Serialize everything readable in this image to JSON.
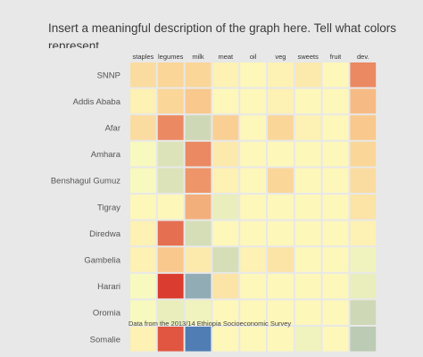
{
  "chart_data": {
    "type": "heatmap",
    "title": "Insert a meaningful description of the graph here. Tell what colors represent.",
    "source": "Data from the 2013/14 Ethiopia Socioeconomic Survey",
    "columns": [
      "staples",
      "legumes",
      "milk",
      "meat",
      "oil",
      "veg",
      "sweets",
      "fruit",
      "dev."
    ],
    "rows": [
      "SNNP",
      "Addis Ababa",
      "Afar",
      "Amhara",
      "Benshagul Gumuz",
      "Tigray",
      "Diredwa",
      "Gambelia",
      "Harari",
      "Oromia",
      "Somalie"
    ],
    "color_scale": {
      "low": "#fefec0",
      "mid_warm": "#f9c88c",
      "high": "#d73027",
      "cool_light": "#c7d3b4",
      "cool": "#4575b4"
    },
    "values": [
      [
        0.25,
        0.3,
        0.3,
        0.1,
        0.05,
        0.1,
        0.15,
        0.05,
        0.65
      ],
      [
        0.1,
        0.3,
        0.4,
        0.05,
        0.05,
        0.1,
        0.05,
        0.05,
        0.45
      ],
      [
        0.25,
        0.65,
        -0.35,
        0.35,
        0.05,
        0.3,
        0.1,
        0.05,
        0.4
      ],
      [
        -0.05,
        -0.25,
        0.65,
        0.15,
        0.05,
        0.05,
        0.05,
        0.05,
        0.3
      ],
      [
        -0.05,
        -0.25,
        0.6,
        0.1,
        0.05,
        0.3,
        0.05,
        0.05,
        0.25
      ],
      [
        0.05,
        0.05,
        0.5,
        -0.15,
        0.05,
        0.05,
        0.05,
        0.05,
        0.2
      ],
      [
        0.1,
        0.75,
        -0.3,
        0.05,
        0.05,
        0.05,
        0.05,
        0.05,
        0.1
      ],
      [
        0.1,
        0.4,
        0.15,
        -0.3,
        0.1,
        0.2,
        0.05,
        0.05,
        -0.1
      ],
      [
        -0.05,
        0.95,
        -0.65,
        0.2,
        0.05,
        0.05,
        0.05,
        0.05,
        -0.15
      ],
      [
        -0.05,
        -0.15,
        -0.1,
        0.05,
        0.05,
        0.05,
        0.05,
        0.05,
        -0.35
      ],
      [
        0.1,
        0.85,
        -0.95,
        0.05,
        0.05,
        0.05,
        -0.1,
        0.05,
        -0.45
      ]
    ],
    "value_range": [
      -1,
      1
    ],
    "legend": "none",
    "grid": false
  }
}
